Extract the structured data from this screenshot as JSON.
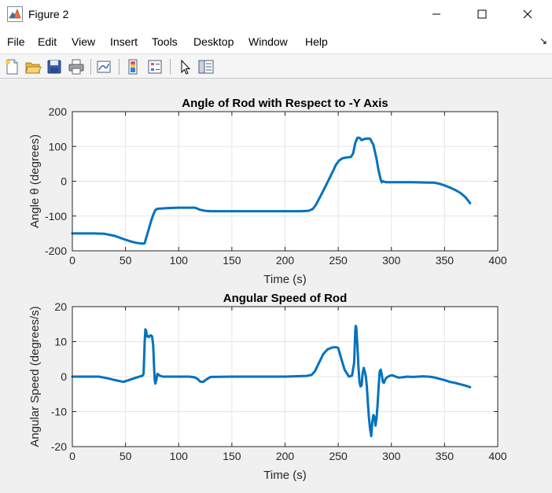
{
  "window": {
    "title": "Figure 2",
    "icon": "matlab-figure-icon"
  },
  "menu": [
    "File",
    "Edit",
    "View",
    "Insert",
    "Tools",
    "Desktop",
    "Window",
    "Help"
  ],
  "toolbar": [
    "new-figure-icon",
    "open-file-icon",
    "save-icon",
    "print-icon",
    "link-plot-icon",
    "insert-colorbar-icon",
    "insert-legend-icon",
    "edit-plot-icon",
    "property-inspector-icon"
  ],
  "colors": {
    "line": "#0072BD",
    "figure_bg": "#F0F0F0",
    "axes_bg": "#FFFFFF"
  },
  "chart_data": [
    {
      "type": "line",
      "title": "Angle of Rod with Respect to -Y Axis",
      "xlabel": "Time (s)",
      "ylabel": "Angle θ (degrees)",
      "xlim": [
        0,
        400
      ],
      "ylim": [
        -200,
        200
      ],
      "xticks": [
        0,
        50,
        100,
        150,
        200,
        250,
        300,
        350,
        400
      ],
      "yticks": [
        -200,
        -100,
        0,
        100,
        200
      ],
      "grid": true,
      "series": [
        {
          "x": [
            0,
            10,
            20,
            30,
            40,
            48,
            55,
            60,
            65,
            67,
            68,
            70,
            74,
            76,
            78,
            80,
            90,
            100,
            110,
            115,
            118,
            120,
            125,
            130,
            150,
            180,
            200,
            215,
            222,
            226,
            229,
            233,
            238,
            242,
            246,
            248,
            251,
            254,
            257,
            260,
            262,
            264,
            266,
            268,
            270,
            272,
            275,
            278,
            280,
            283,
            286,
            288,
            290,
            291,
            292,
            295,
            300,
            320,
            335,
            340,
            345,
            350,
            355,
            360,
            365,
            370,
            374
          ],
          "y": [
            -150,
            -150,
            -150,
            -151,
            -157,
            -166,
            -173,
            -177,
            -179,
            -179,
            -178,
            -157,
            -115,
            -97,
            -83,
            -79,
            -77,
            -76,
            -76,
            -76,
            -79,
            -82,
            -85,
            -86,
            -86,
            -86,
            -86,
            -86,
            -85,
            -80,
            -68,
            -45,
            -15,
            10,
            35,
            48,
            60,
            66,
            68,
            69,
            70,
            80,
            110,
            125,
            125,
            118,
            122,
            123,
            122,
            105,
            65,
            30,
            5,
            -3,
            0,
            -3,
            -3,
            -3,
            -4,
            -4,
            -7,
            -12,
            -18,
            -25,
            -34,
            -47,
            -63
          ]
        }
      ]
    },
    {
      "type": "line",
      "title": "Angular Speed of Rod",
      "xlabel": "Time (s)",
      "ylabel": "Angular Speed (degrees/s)",
      "xlim": [
        0,
        400
      ],
      "ylim": [
        -20,
        20
      ],
      "xticks": [
        0,
        50,
        100,
        150,
        200,
        250,
        300,
        350,
        400
      ],
      "yticks": [
        -20,
        -10,
        0,
        10,
        20
      ],
      "grid": true,
      "series": [
        {
          "x": [
            0,
            10,
            20,
            25,
            30,
            35,
            40,
            45,
            48,
            52,
            56,
            60,
            64,
            66,
            67,
            68,
            68.7,
            69.5,
            70,
            71,
            72,
            73,
            74,
            75,
            76,
            77,
            77.5,
            78,
            79,
            80,
            82,
            85,
            90,
            100,
            110,
            115,
            118,
            120,
            123,
            126,
            130,
            150,
            180,
            200,
            220,
            225,
            228,
            232,
            236,
            240,
            244,
            246,
            248,
            250,
            253,
            256,
            260,
            263,
            265,
            266,
            266.5,
            267,
            268,
            269,
            270,
            271,
            272,
            273,
            274,
            275,
            276,
            277,
            278,
            279,
            280,
            281,
            282,
            283,
            284,
            285,
            286,
            287,
            288,
            289,
            290,
            291,
            292,
            293,
            294,
            295,
            296,
            297,
            299,
            301,
            304,
            307,
            310,
            315,
            320,
            325,
            330,
            335,
            340,
            345,
            350,
            355,
            360,
            365,
            370,
            374
          ],
          "y": [
            0,
            0,
            0,
            0,
            -0.3,
            -0.6,
            -1,
            -1.3,
            -1.5,
            -1.1,
            -0.7,
            -0.3,
            0.1,
            0.3,
            0.8,
            10,
            13.5,
            13,
            11.5,
            11.6,
            11.3,
            11.7,
            11.8,
            11.5,
            9,
            2,
            -1,
            -2,
            -1,
            0.8,
            0.3,
            0,
            0,
            0,
            0,
            -0.2,
            -0.7,
            -1.4,
            -1.5,
            -0.8,
            -0.1,
            0,
            0,
            0,
            0.2,
            0.5,
            1.5,
            4,
            6.5,
            7.8,
            8.3,
            8.4,
            8.4,
            8.2,
            5,
            2,
            0,
            0.3,
            4,
            13,
            14.5,
            14,
            9,
            3,
            -1.5,
            -2.8,
            -2.5,
            1,
            2.5,
            1.5,
            0,
            -3,
            -8,
            -12,
            -15,
            -17,
            -13,
            -11,
            -11.5,
            -14,
            -12,
            -8,
            -3,
            1.5,
            2,
            0.5,
            -1.5,
            -1.8,
            -1,
            -0.4,
            -0.2,
            0,
            0.3,
            0.4,
            0,
            -0.3,
            -0.2,
            0,
            -0.1,
            0,
            0.1,
            0,
            -0.2,
            -0.6,
            -1,
            -1.5,
            -1.8,
            -2.2,
            -2.6,
            -3
          ]
        }
      ]
    }
  ]
}
